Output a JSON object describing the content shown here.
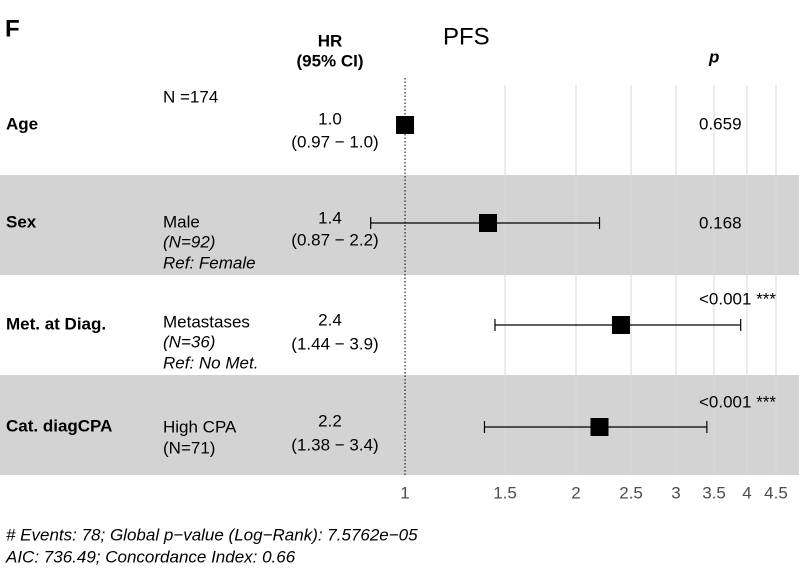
{
  "chart_data": {
    "type": "forest",
    "panel_label": "F",
    "title": "PFS",
    "hr_header": [
      "HR",
      "(95% CI)"
    ],
    "p_header": "p",
    "categories": [
      "Age",
      "Sex",
      "Met. at Diag.",
      "Cat. diagCPA"
    ],
    "level_lines": [
      [
        "N =174"
      ],
      [
        "Male",
        "(N=92)",
        "Ref: Female"
      ],
      [
        "Metastases",
        "(N=36)",
        "Ref: No Met."
      ],
      [
        "High CPA",
        "(N=71)"
      ]
    ],
    "values": [
      1.0,
      1.4,
      2.4,
      2.2
    ],
    "value_labels": [
      "1.0",
      "1.4",
      "2.4",
      "2.2"
    ],
    "lower": [
      0.97,
      0.87,
      1.44,
      1.38
    ],
    "upper": [
      1.0,
      2.2,
      3.9,
      3.4
    ],
    "ci_labels": [
      "(0.97 − 1.0)",
      "(0.87 − 2.2)",
      "(1.44 − 3.9)",
      "(1.38 − 3.4)"
    ],
    "p_labels": [
      "0.659",
      "0.168",
      "<0.001 ***",
      "<0.001 ***"
    ],
    "color": "#000000",
    "band_color": "#d3d3d3",
    "log_x": true,
    "xlim": [
      0.8,
      4.9
    ],
    "xticks": [
      1,
      1.5,
      2,
      2.5,
      3,
      3.5,
      4,
      4.5
    ],
    "grid": true,
    "footnotes": [
      "# Events: 78; Global p−value (Log−Rank): 7.5762e−05",
      "AIC: 736.49; Concordance Index: 0.66"
    ]
  }
}
